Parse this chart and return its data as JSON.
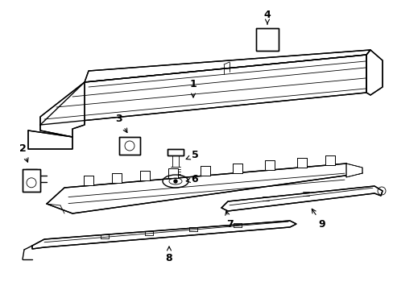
{
  "bg_color": "#ffffff",
  "line_color": "#000000",
  "fig_width": 4.89,
  "fig_height": 3.6,
  "dpi": 100,
  "font_size": 9,
  "font_weight": "bold",
  "arrow_color": "#000000"
}
